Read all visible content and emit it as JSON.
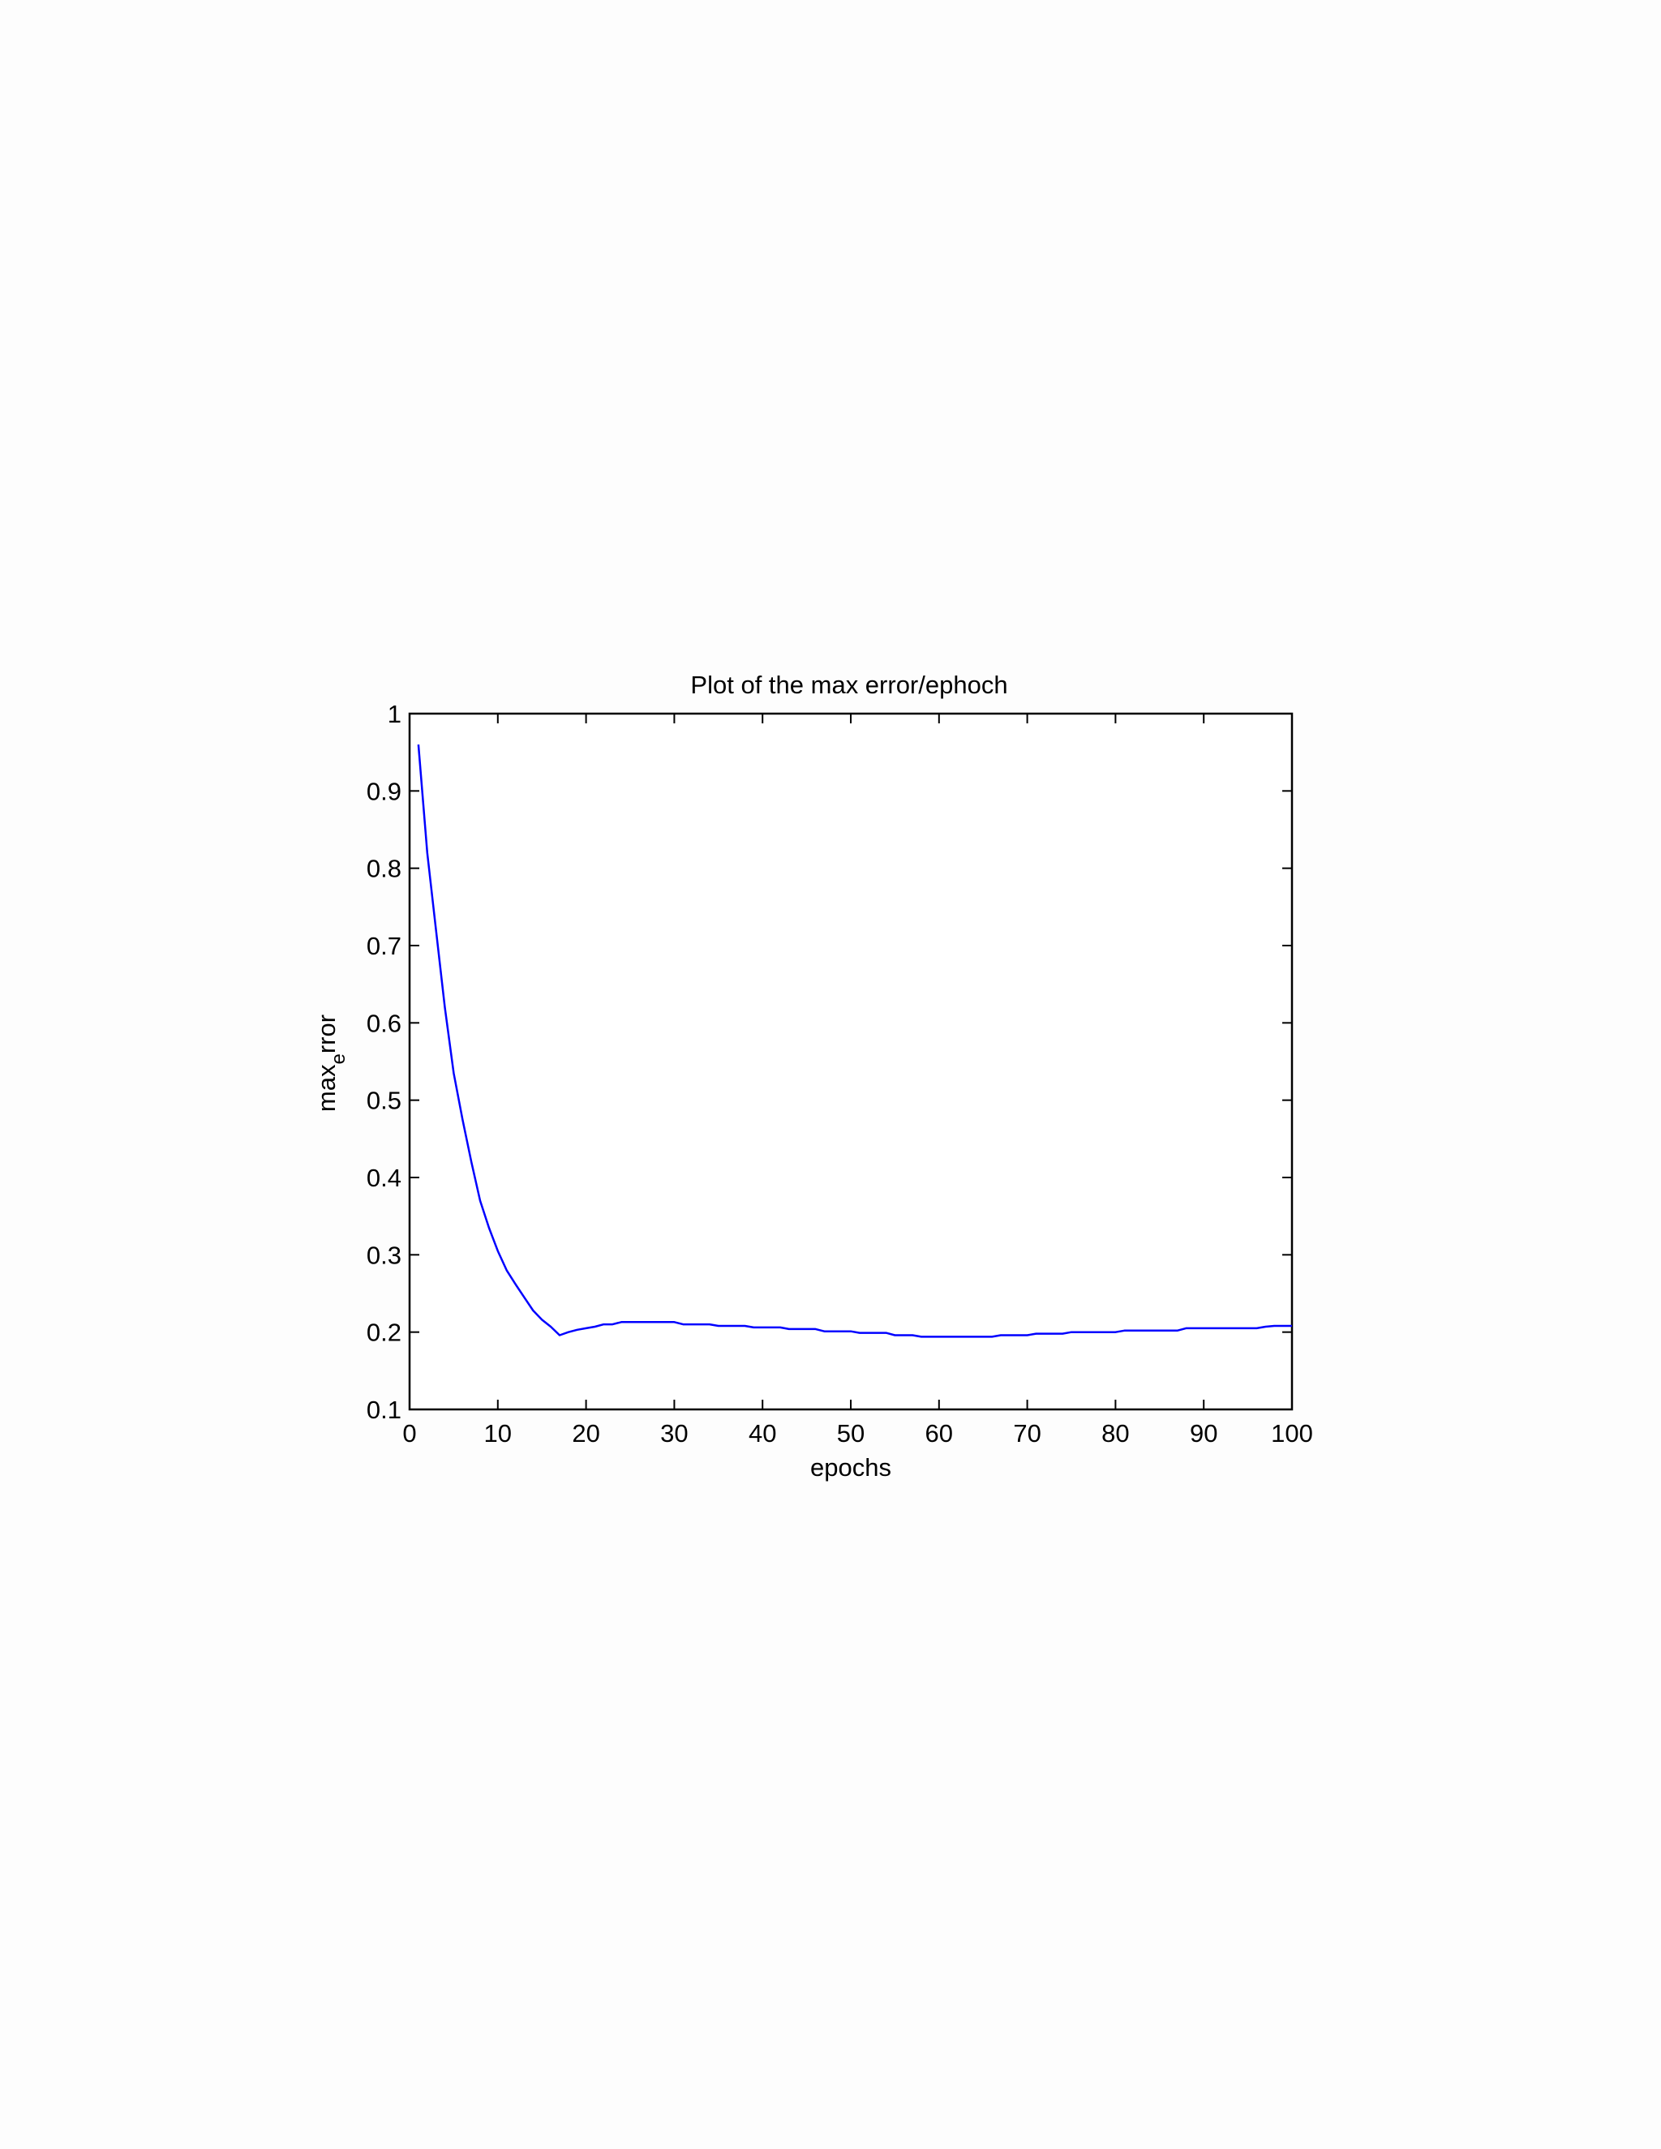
{
  "chart_data": {
    "type": "line",
    "title": "Plot of the max error/ephoch",
    "xlabel": "epochs",
    "ylabel_main": "max",
    "ylabel_sub": "e",
    "ylabel_tail": "rror",
    "xlim": [
      0,
      100
    ],
    "ylim": [
      0.1,
      1
    ],
    "xticks": [
      "0",
      "10",
      "20",
      "30",
      "40",
      "50",
      "60",
      "70",
      "80",
      "90",
      "100"
    ],
    "yticks": [
      "0.1",
      "0.2",
      "0.3",
      "0.4",
      "0.5",
      "0.6",
      "0.7",
      "0.8",
      "0.9",
      "1"
    ],
    "grid": false,
    "line_color": "#0000ff",
    "series": [
      {
        "x": [
          1,
          2,
          3,
          4,
          5,
          6,
          7,
          8,
          9,
          10,
          11,
          12,
          13,
          14,
          15,
          16,
          17,
          18,
          19,
          20,
          21,
          22,
          23,
          24,
          25,
          26,
          27,
          28,
          29,
          30,
          31,
          32,
          33,
          34,
          35,
          36,
          37,
          38,
          39,
          40,
          41,
          42,
          43,
          44,
          45,
          46,
          47,
          48,
          49,
          50,
          51,
          52,
          53,
          54,
          55,
          56,
          57,
          58,
          59,
          60,
          61,
          62,
          63,
          64,
          65,
          66,
          67,
          68,
          69,
          70,
          71,
          72,
          73,
          74,
          75,
          76,
          77,
          78,
          79,
          80,
          81,
          82,
          83,
          84,
          85,
          86,
          87,
          88,
          89,
          90,
          91,
          92,
          93,
          94,
          95,
          96,
          97,
          98,
          99,
          100
        ],
        "y": [
          0.96,
          0.82,
          0.72,
          0.62,
          0.535,
          0.475,
          0.42,
          0.37,
          0.335,
          0.305,
          0.28,
          0.262,
          0.245,
          0.228,
          0.216,
          0.207,
          0.196,
          0.2,
          0.203,
          0.205,
          0.207,
          0.21,
          0.21,
          0.213,
          0.213,
          0.213,
          0.213,
          0.213,
          0.213,
          0.213,
          0.21,
          0.21,
          0.21,
          0.21,
          0.208,
          0.208,
          0.208,
          0.208,
          0.206,
          0.206,
          0.206,
          0.206,
          0.204,
          0.204,
          0.204,
          0.204,
          0.201,
          0.201,
          0.201,
          0.201,
          0.199,
          0.199,
          0.199,
          0.199,
          0.196,
          0.196,
          0.196,
          0.194,
          0.194,
          0.194,
          0.194,
          0.194,
          0.194,
          0.194,
          0.194,
          0.194,
          0.196,
          0.196,
          0.196,
          0.196,
          0.198,
          0.198,
          0.198,
          0.198,
          0.2,
          0.2,
          0.2,
          0.2,
          0.2,
          0.2,
          0.202,
          0.202,
          0.202,
          0.202,
          0.202,
          0.202,
          0.202,
          0.205,
          0.205,
          0.205,
          0.205,
          0.205,
          0.205,
          0.205,
          0.205,
          0.205,
          0.207,
          0.208,
          0.208,
          0.208
        ]
      }
    ]
  }
}
